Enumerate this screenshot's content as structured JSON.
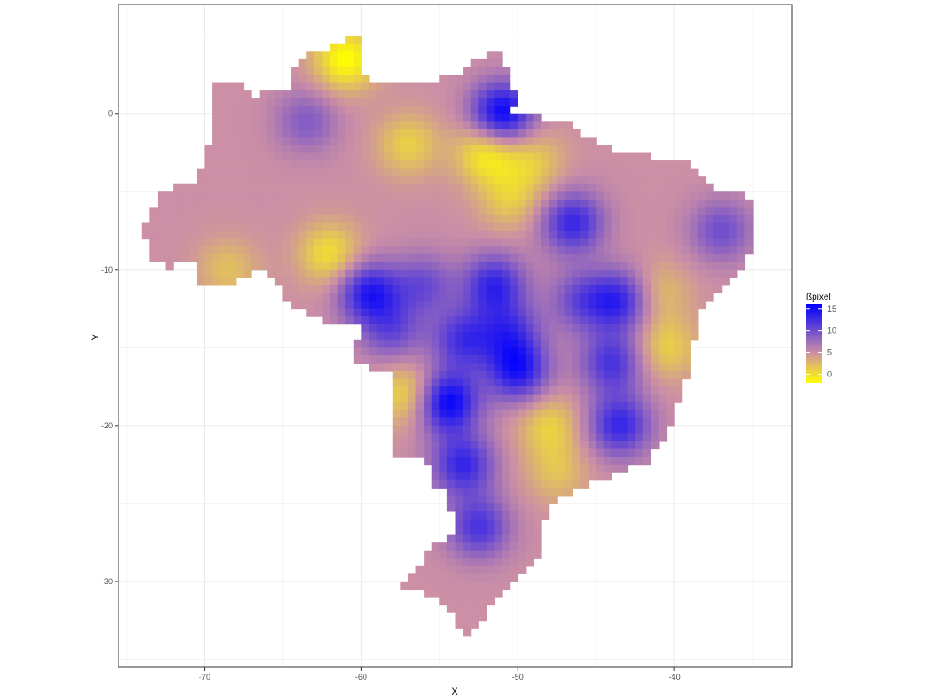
{
  "chart_data": {
    "type": "heatmap",
    "title": "",
    "xlabel": "X",
    "ylabel": "Y",
    "xlim": [
      -75.5,
      -32.5
    ],
    "ylim": [
      -35.5,
      7
    ],
    "x_ticks": [
      -70,
      -60,
      -50,
      -40
    ],
    "x_tick_labels": [
      "-70",
      "-60",
      "-50",
      "-40"
    ],
    "y_ticks": [
      0,
      -10,
      -20,
      -30
    ],
    "y_tick_labels": [
      "0",
      "-10",
      "-20",
      "-30"
    ],
    "grid": true,
    "background": "#ffffff",
    "grid_color": "#ebebeb",
    "legend": {
      "title": "ßpixel",
      "placement": "right",
      "ticks": [
        0,
        5,
        10,
        15
      ],
      "tick_labels": [
        "0",
        "5",
        "10",
        "15"
      ],
      "range": [
        -2,
        16
      ],
      "colors": {
        "low": "#ffff00",
        "mid": "#cc8fa5",
        "high": "#0000ff"
      },
      "midpoint": 5
    },
    "cell_size_degrees": 0.5,
    "region": "Brazil",
    "base_value": 5,
    "hotspots": [
      {
        "x": -61.0,
        "y": 3.5,
        "value": -2
      },
      {
        "x": -57.0,
        "y": -2.0,
        "value": 1
      },
      {
        "x": -52.0,
        "y": -2.5,
        "value": -1
      },
      {
        "x": -49.0,
        "y": -3.0,
        "value": 1.5
      },
      {
        "x": -50.5,
        "y": -5.5,
        "value": 1.5
      },
      {
        "x": -62.0,
        "y": -9.0,
        "value": 0
      },
      {
        "x": -68.5,
        "y": -10.0,
        "value": 2
      },
      {
        "x": -57.0,
        "y": -18.0,
        "value": 0
      },
      {
        "x": -48.0,
        "y": -20.0,
        "value": 1
      },
      {
        "x": -40.5,
        "y": -15.0,
        "value": 1
      },
      {
        "x": -41.0,
        "y": -11.5,
        "value": 2
      },
      {
        "x": -47.5,
        "y": -23.0,
        "value": 2
      },
      {
        "x": -51.0,
        "y": 0.0,
        "value": 16
      },
      {
        "x": -59.5,
        "y": -11.5,
        "value": 14
      },
      {
        "x": -51.5,
        "y": -11.0,
        "value": 13
      },
      {
        "x": -46.5,
        "y": -7.0,
        "value": 13
      },
      {
        "x": -43.5,
        "y": -12.0,
        "value": 13
      },
      {
        "x": -53.5,
        "y": -14.5,
        "value": 12
      },
      {
        "x": -50.0,
        "y": -16.5,
        "value": 14
      },
      {
        "x": -54.5,
        "y": -18.5,
        "value": 16
      },
      {
        "x": -43.5,
        "y": -20.0,
        "value": 13
      },
      {
        "x": -53.5,
        "y": -22.5,
        "value": 13
      },
      {
        "x": -52.5,
        "y": -26.5,
        "value": 12
      },
      {
        "x": -37.0,
        "y": -7.5,
        "value": 10
      },
      {
        "x": -63.5,
        "y": -0.5,
        "value": 9
      },
      {
        "x": -58.0,
        "y": -14.0,
        "value": 10
      },
      {
        "x": -44.0,
        "y": -16.0,
        "value": 12
      },
      {
        "x": -46.0,
        "y": -12.0,
        "value": 10
      },
      {
        "x": -50.5,
        "y": -14.0,
        "value": 11
      },
      {
        "x": -56.0,
        "y": -11.0,
        "value": 10
      }
    ]
  }
}
